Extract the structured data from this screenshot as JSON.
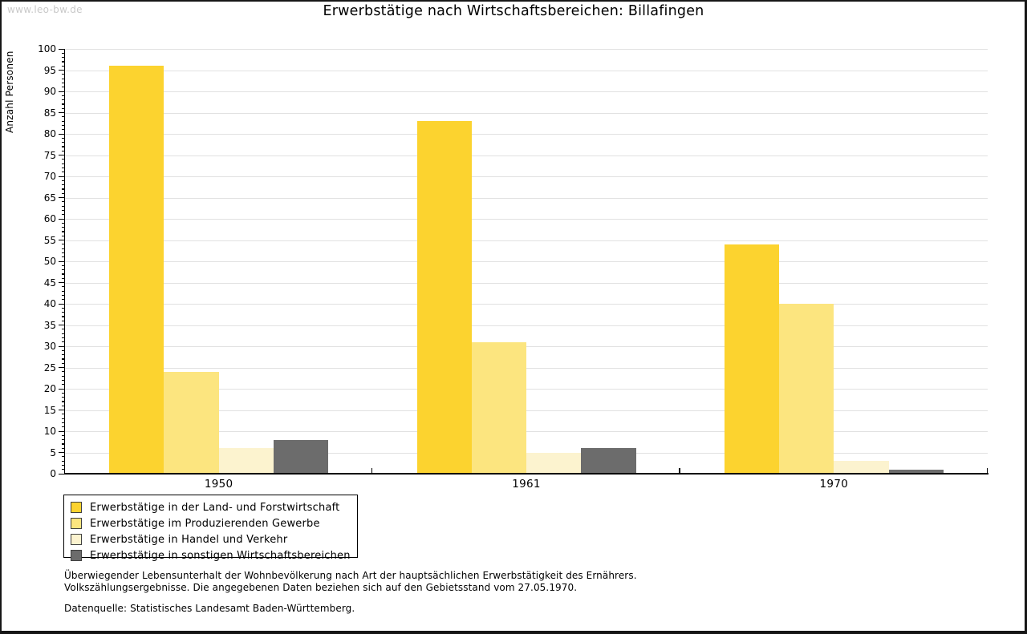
{
  "watermark": "www.leo-bw.de",
  "title": "Erwerbstätige nach Wirtschaftsbereichen: Billafingen",
  "chart_data": {
    "type": "bar",
    "title": "Erwerbstätige nach Wirtschaftsbereichen: Billafingen",
    "ylabel": "Anzahl Personen",
    "xlabel": "",
    "ylim": [
      0,
      100
    ],
    "y_tick_step": 5,
    "y_minor_tick_step": 1,
    "grid": true,
    "legend_position": "bottom-left",
    "categories": [
      "1950",
      "1961",
      "1970"
    ],
    "series": [
      {
        "name": "Erwerbstätige in der Land- und Forstwirtschaft",
        "color": "#FCD32F",
        "values": [
          96,
          83,
          54
        ]
      },
      {
        "name": "Erwerbstätige im Produzierenden Gewerbe",
        "color": "#FCE57F",
        "values": [
          24,
          31,
          40
        ]
      },
      {
        "name": "Erwerbstätige in Handel und Verkehr",
        "color": "#FCF3CF",
        "values": [
          6,
          5,
          3
        ]
      },
      {
        "name": "Erwerbstätige in sonstigen Wirtschaftsbereichen",
        "color": "#6C6C6C",
        "values": [
          8,
          6,
          1
        ]
      }
    ]
  },
  "footer": {
    "line1": "Überwiegender Lebensunterhalt der Wohnbevölkerung nach Art der hauptsächlichen Erwerbstätigkeit des Ernährers.",
    "line2": "Volkszählungsergebnisse. Die angegebenen Daten beziehen sich auf den Gebietsstand vom 27.05.1970.",
    "source": "Datenquelle: Statistisches Landesamt Baden-Württemberg."
  },
  "colors": {
    "grid": "#e1e1e1",
    "axis": "#000000",
    "watermark": "#c9c9c9"
  }
}
